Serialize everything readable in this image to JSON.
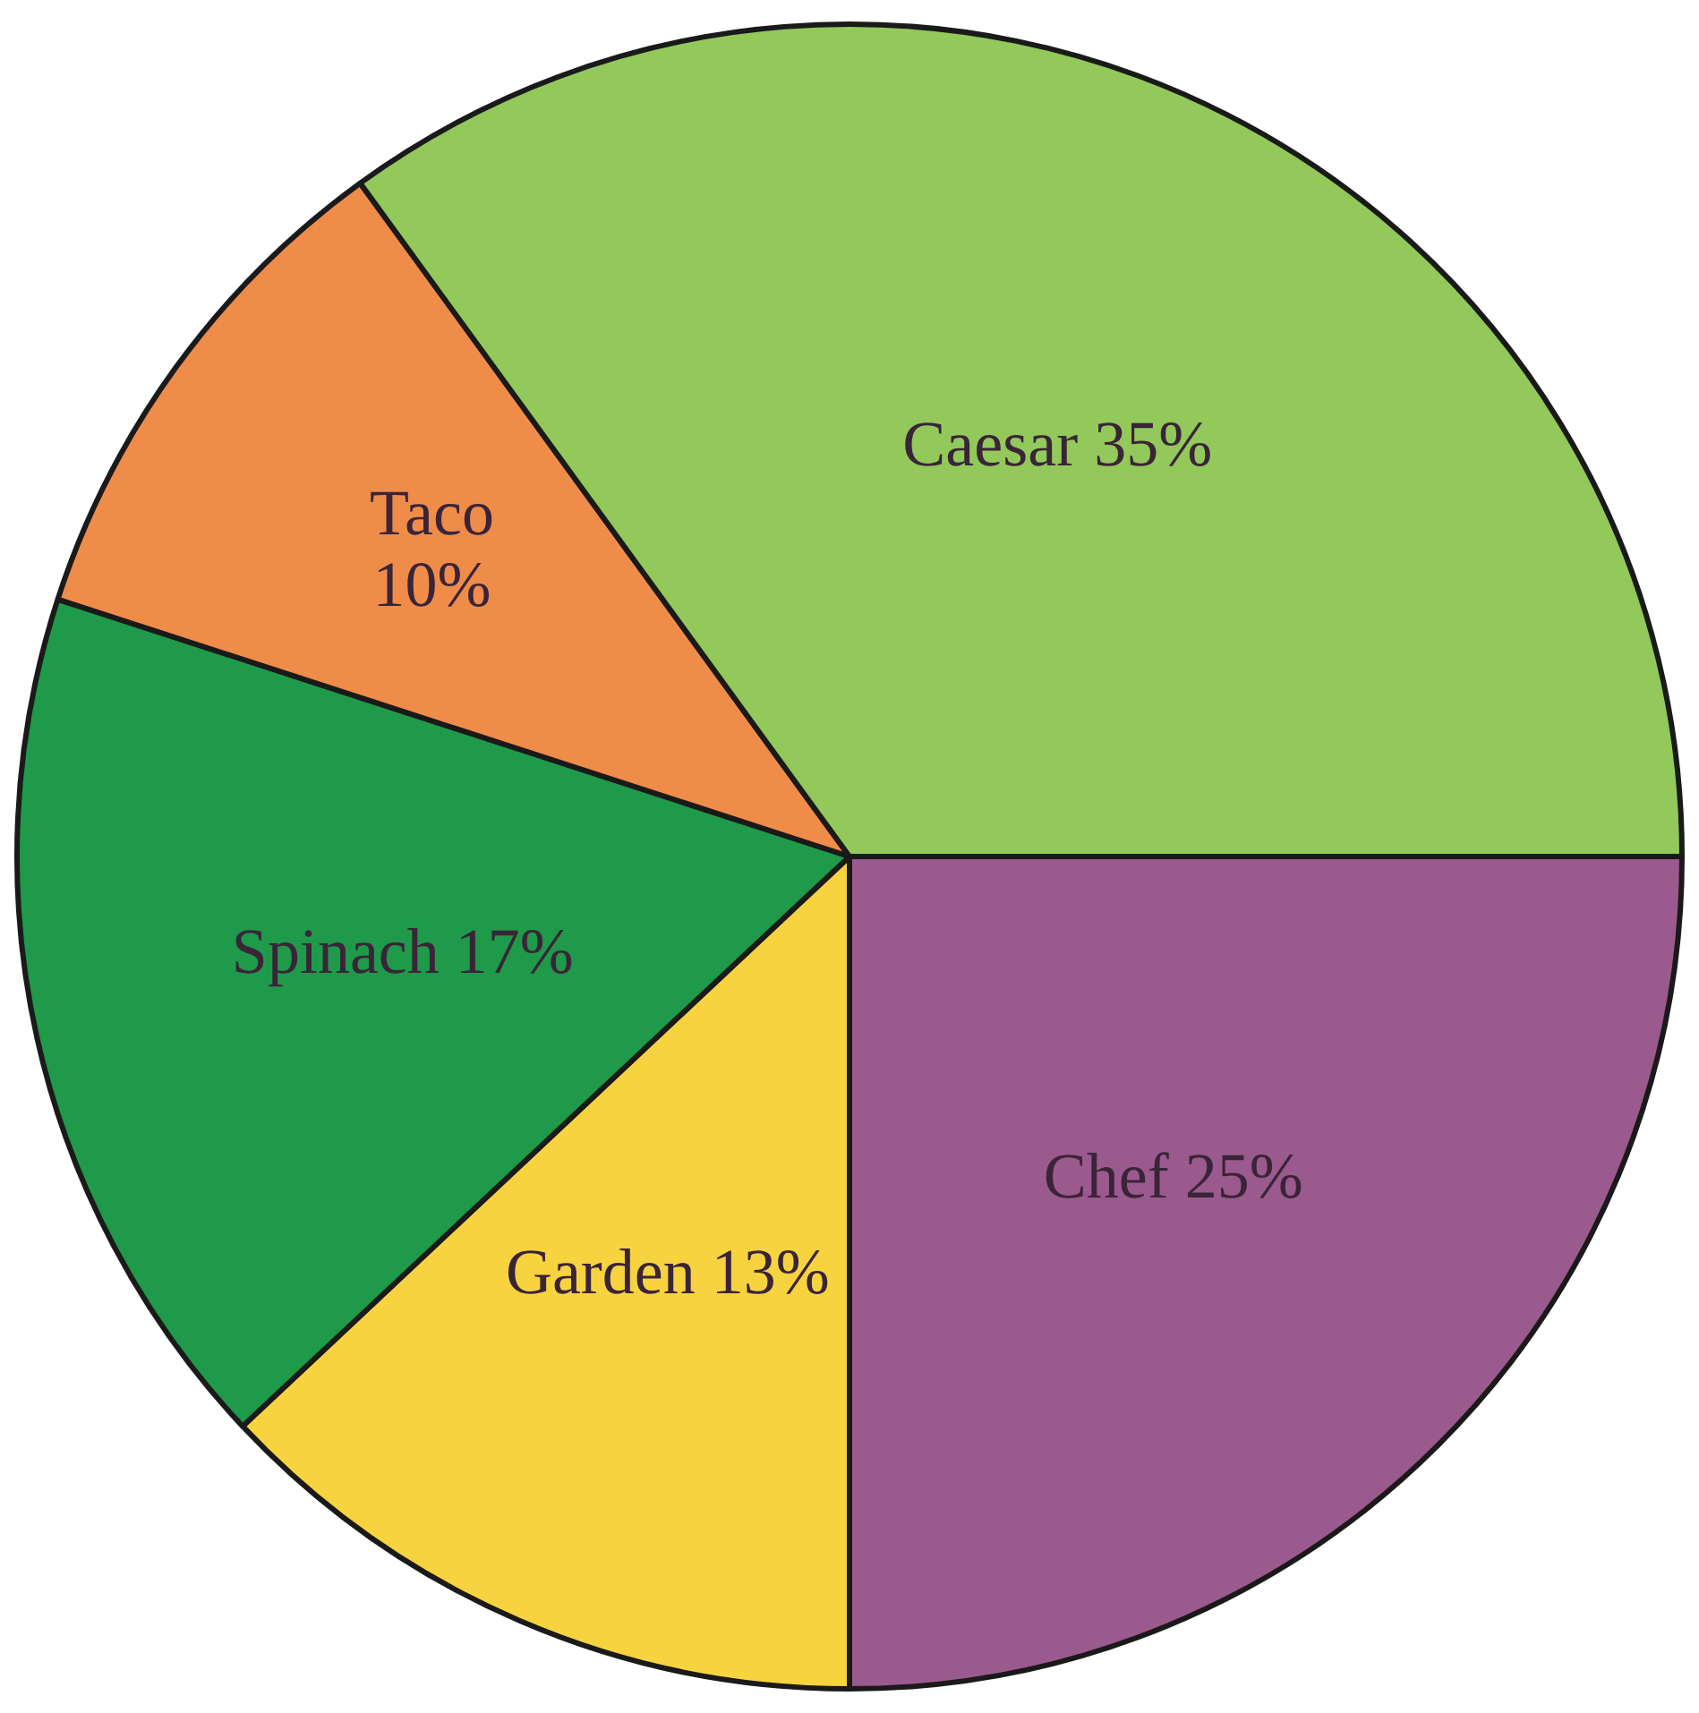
{
  "chart_data": {
    "type": "pie",
    "categories": [
      "Chef",
      "Garden",
      "Spinach",
      "Taco",
      "Caesar"
    ],
    "values": [
      25,
      13,
      17,
      10,
      35
    ],
    "value_labels": [
      "25%",
      "13%",
      "17%",
      "10%",
      "35%"
    ],
    "colors": [
      "#9b5a8e",
      "#f7d340",
      "#1e9a4a",
      "#f08c4a",
      "#92c95a"
    ],
    "data_labels": true,
    "legend": false
  }
}
